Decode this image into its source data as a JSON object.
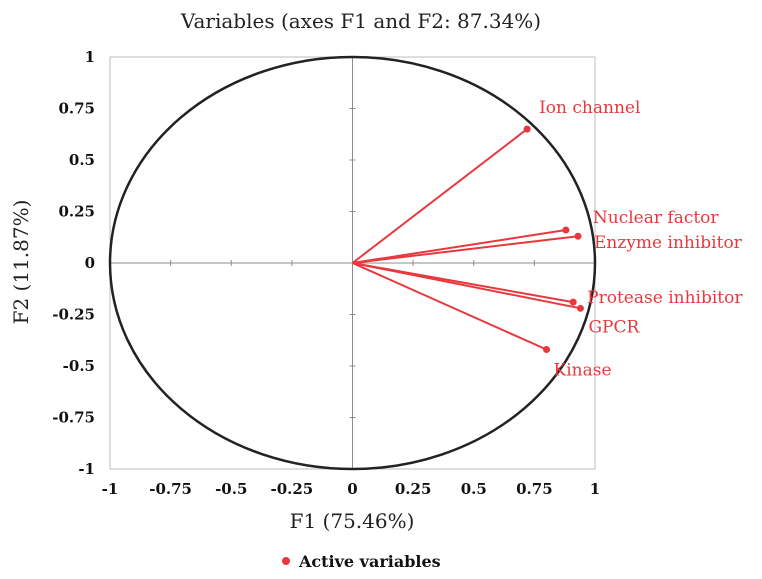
{
  "chart_data": {
    "type": "scatter",
    "title": "Variables (axes F1 and F2: 87.34%)",
    "xlabel": "F1 (75.46%)",
    "ylabel": "F2 (11.87%)",
    "xlim": [
      -1,
      1
    ],
    "ylim": [
      -1,
      1
    ],
    "x_ticks": [
      "-1",
      "-0.75",
      "-0.5",
      "-0.25",
      "0",
      "0.25",
      "0.5",
      "0.75",
      "1"
    ],
    "y_ticks": [
      "1",
      "0.75",
      "0.5",
      "0.25",
      "0",
      "-0.25",
      "-0.5",
      "-0.75",
      "-1"
    ],
    "unit_circle": true,
    "grid": false,
    "legend": {
      "position": "bottom",
      "label": "Active variables"
    },
    "series_color": "#e8383d",
    "series": [
      {
        "name": "Ion channel",
        "x": 0.72,
        "y": 0.65
      },
      {
        "name": "Nuclear factor",
        "x": 0.88,
        "y": 0.16
      },
      {
        "name": "Enzyme inhibitor",
        "x": 0.93,
        "y": 0.13
      },
      {
        "name": "Protease inhibitor",
        "x": 0.91,
        "y": -0.19
      },
      {
        "name": "GPCR",
        "x": 0.94,
        "y": -0.22
      },
      {
        "name": "Kinase",
        "x": 0.8,
        "y": -0.42
      }
    ]
  }
}
